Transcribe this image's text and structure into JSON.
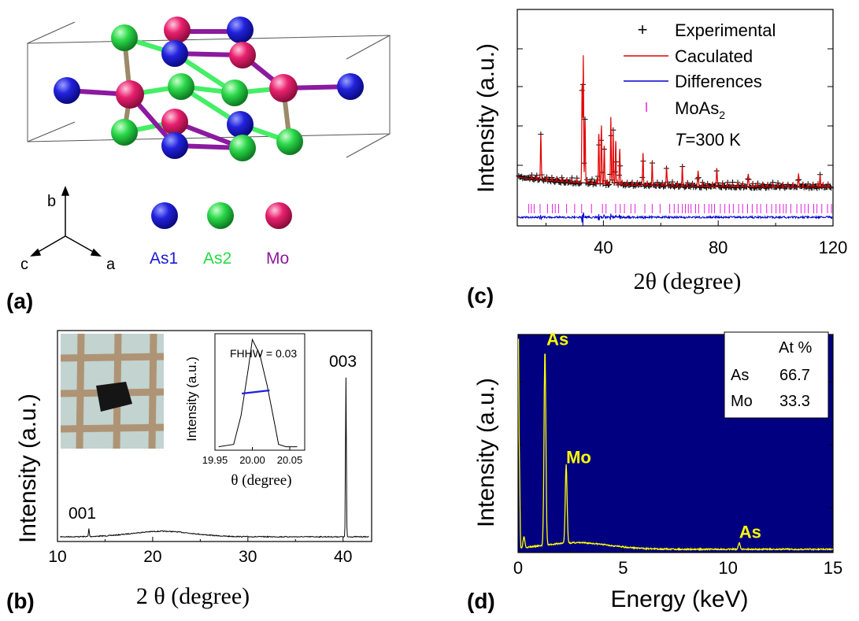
{
  "panel_a": {
    "label": "(a)",
    "axes": {
      "b": "b",
      "c": "c",
      "a": "a"
    },
    "legend": [
      {
        "name": "As1",
        "color": "#1a1ad6"
      },
      {
        "name": "As2",
        "color": "#22dd44"
      },
      {
        "name": "Mo",
        "color": "#e8206e",
        "text_color": "#8b1a9b"
      }
    ]
  },
  "colors": {
    "as1": "#1a1ad6",
    "as2": "#22dd44",
    "mo": "#e8206e",
    "calculated": "#e00000",
    "differences": "#0000cc",
    "bragg": "#e020e0",
    "edx_bg": "#000080",
    "edx_trace": "#ffff00",
    "bar": "#1f1fe0"
  },
  "chart_data": [
    {
      "panel": "(b)",
      "type": "line",
      "xlabel": "2 θ (degree)",
      "ylabel": "Intensity (a.u.)",
      "xlim": [
        10,
        43
      ],
      "xticks": [
        10,
        20,
        30,
        40
      ],
      "peaks": [
        {
          "label": "001",
          "x": 13.3
        },
        {
          "label": "003",
          "x": 40.3
        }
      ],
      "inset": {
        "annotation": "FHHW = 0.03",
        "xlabel": "θ (degree)",
        "ylabel": "Intensity (a.u.)",
        "xlim": [
          19.95,
          20.07
        ],
        "xticks": [
          "19.95",
          "20.00",
          "20.05"
        ],
        "x": [
          19.955,
          19.975,
          19.985,
          19.995,
          20.0,
          20.01,
          20.02,
          20.03,
          20.035,
          20.045,
          20.06
        ],
        "y": [
          0.03,
          0.05,
          0.3,
          0.72,
          0.95,
          0.82,
          0.55,
          0.22,
          0.05,
          0.03,
          0.03
        ],
        "fwhm_y": 0.5,
        "fwhm_x": [
          19.986,
          20.023
        ]
      }
    },
    {
      "panel": "(c)",
      "type": "line",
      "xlabel": "2θ (degree)",
      "ylabel": "Intensity (a.u.)",
      "xlim": [
        10,
        120
      ],
      "xticks": [
        40,
        80,
        120
      ],
      "legend": [
        {
          "name": "Experimental",
          "marker": "+"
        },
        {
          "name": "Caculated",
          "marker": "line"
        },
        {
          "name": "Differences",
          "marker": "line"
        },
        {
          "name": "MoAs",
          "subscript": "2",
          "marker": "|"
        }
      ],
      "annotation_T": "T",
      "annotation_rest": "=300 K",
      "major_peaks": [
        {
          "x": 18.2,
          "y": 0.35
        },
        {
          "x": 32.6,
          "y": 0.74
        },
        {
          "x": 33.0,
          "y": 0.98
        },
        {
          "x": 33.6,
          "y": 0.5
        },
        {
          "x": 38.4,
          "y": 0.4
        },
        {
          "x": 39.3,
          "y": 0.45
        },
        {
          "x": 40.3,
          "y": 0.3
        },
        {
          "x": 42.6,
          "y": 0.52
        },
        {
          "x": 43.4,
          "y": 0.42
        },
        {
          "x": 44.3,
          "y": 0.34
        },
        {
          "x": 45.7,
          "y": 0.28
        },
        {
          "x": 53.8,
          "y": 0.25
        },
        {
          "x": 57.0,
          "y": 0.16
        },
        {
          "x": 62.0,
          "y": 0.14
        },
        {
          "x": 67.5,
          "y": 0.13
        },
        {
          "x": 73.0,
          "y": 0.12
        },
        {
          "x": 79.5,
          "y": 0.14
        },
        {
          "x": 90.5,
          "y": 0.1
        },
        {
          "x": 108.0,
          "y": 0.1
        },
        {
          "x": 115.5,
          "y": 0.1
        }
      ]
    },
    {
      "panel": "(d)",
      "type": "line",
      "xlabel": "Energy (keV)",
      "ylabel": "Intensity (a.u.)",
      "xlim": [
        0,
        15
      ],
      "xticks": [
        0,
        5,
        10,
        15
      ],
      "peak_labels": [
        {
          "label": "As",
          "x": 1.28
        },
        {
          "label": "Mo",
          "x": 2.29
        },
        {
          "label": "As",
          "x": 10.53
        }
      ],
      "peaks": [
        {
          "x": 0.28,
          "y": 0.05
        },
        {
          "x": 1.28,
          "y": 0.9
        },
        {
          "x": 2.29,
          "y": 0.36
        },
        {
          "x": 10.53,
          "y": 0.03
        }
      ],
      "table": {
        "header": "At %",
        "rows": [
          {
            "element": "As",
            "value": "66.7"
          },
          {
            "element": "Mo",
            "value": "33.3"
          }
        ]
      }
    }
  ]
}
